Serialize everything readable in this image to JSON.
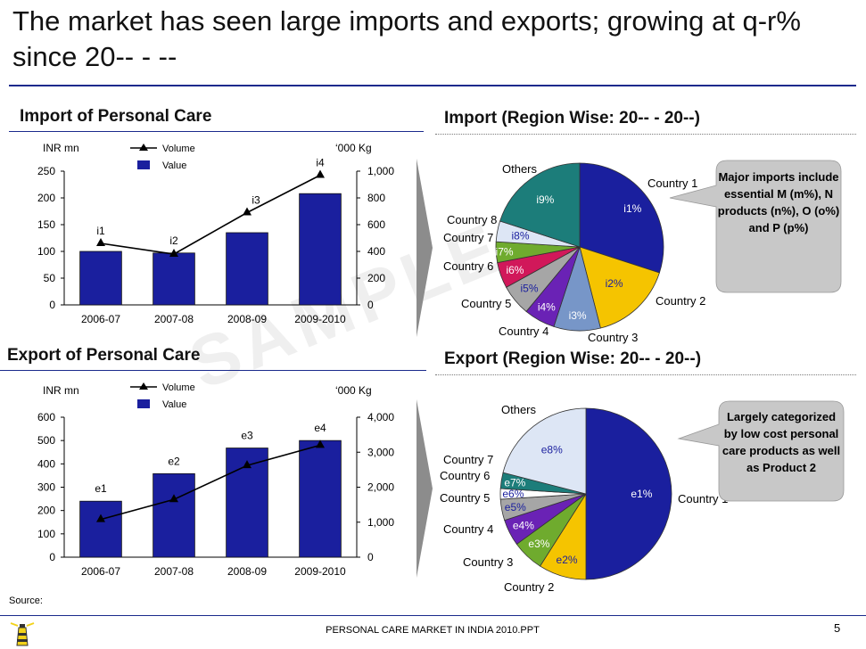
{
  "title": "The market has seen large imports and exports; growing at q-r% since 20-- - --",
  "source_label": "Source:",
  "footer": "PERSONAL CARE MARKET IN INDIA 2010.PPT",
  "page_number": "5",
  "watermark": "SAMPLE",
  "callouts": {
    "import": "Major imports include essential M (m%), N products (n%), O (o%) and P (p%)",
    "export": "Largely categorized by low cost personal care products as well as Product 2"
  },
  "colors": {
    "bar": "#1a1f9e",
    "line": "#000000",
    "rule": "#1a2a8c",
    "callout": "#c8c8c8"
  },
  "chart_data": [
    {
      "id": "import_bar",
      "type": "bar",
      "title": "Import of Personal Care",
      "ylabel_left": "INR mn",
      "ylabel_right": "‘000 Kg",
      "categories": [
        "2006-07",
        "2007-08",
        "2008-09",
        "2009-2010"
      ],
      "ylim_left": [
        0,
        250
      ],
      "yticks_left": [
        "0",
        "50",
        "100",
        "150",
        "200",
        "250"
      ],
      "ylim_right": [
        0,
        1000
      ],
      "yticks_right": [
        "0",
        "200",
        "400",
        "600",
        "800",
        "1,000"
      ],
      "series": [
        {
          "name": "Value",
          "type": "bar",
          "axis": "left",
          "values": [
            100,
            97,
            135,
            208
          ]
        },
        {
          "name": "Volume",
          "type": "line",
          "axis": "right",
          "values": [
            460,
            380,
            690,
            970
          ]
        }
      ],
      "data_labels": [
        "i1",
        "i2",
        "i3",
        "i4"
      ],
      "legend": [
        "Volume",
        "Value"
      ]
    },
    {
      "id": "export_bar",
      "type": "bar",
      "title": "Export of Personal Care",
      "ylabel_left": "INR mn",
      "ylabel_right": "‘000 Kg",
      "categories": [
        "2006-07",
        "2007-08",
        "2008-09",
        "2009-2010"
      ],
      "ylim_left": [
        0,
        600
      ],
      "yticks_left": [
        "0",
        "100",
        "200",
        "300",
        "400",
        "500",
        "600"
      ],
      "ylim_right": [
        0,
        4000
      ],
      "yticks_right": [
        "0",
        "1,000",
        "2,000",
        "3,000",
        "4,000"
      ],
      "series": [
        {
          "name": "Value",
          "type": "bar",
          "axis": "left",
          "values": [
            240,
            358,
            468,
            500
          ]
        },
        {
          "name": "Volume",
          "type": "line",
          "axis": "right",
          "values": [
            1080,
            1650,
            2620,
            3200
          ]
        }
      ],
      "data_labels": [
        "e1",
        "e2",
        "e3",
        "e4"
      ],
      "legend": [
        "Volume",
        "Value"
      ]
    },
    {
      "id": "import_pie",
      "type": "pie",
      "title": "Import (Region Wise: 20-- - 20--)",
      "slices": [
        {
          "name": "Country 1",
          "label": "i1%",
          "value": 0.3,
          "color": "#1a1f9e",
          "label_color": "#ffffff"
        },
        {
          "name": "Country 2",
          "label": "i2%",
          "value": 0.16,
          "color": "#f5c400",
          "label_color": "#1a1f9e"
        },
        {
          "name": "Country 3",
          "label": "i3%",
          "value": 0.09,
          "color": "#7796c8",
          "label_color": "#ffffff"
        },
        {
          "name": "Country 4",
          "label": "i4%",
          "value": 0.06,
          "color": "#6a22b5",
          "label_color": "#ffffff"
        },
        {
          "name": "Country 5",
          "label": "i5%",
          "value": 0.06,
          "color": "#a6a6a6",
          "label_color": "#1a1f9e"
        },
        {
          "name": "Country 6",
          "label": "i6%",
          "value": 0.05,
          "color": "#d1185a",
          "label_color": "#ffffff"
        },
        {
          "name": "Country 7",
          "label": "i7%",
          "value": 0.04,
          "color": "#6fab2e",
          "label_color": "#ffffff"
        },
        {
          "name": "Country 8",
          "label": "i8%",
          "value": 0.04,
          "color": "#dde6f5",
          "label_color": "#1a1f9e"
        },
        {
          "name": "Others",
          "label": "i9%",
          "value": 0.2,
          "color": "#1c7d7a",
          "label_color": "#ffffff"
        }
      ]
    },
    {
      "id": "export_pie",
      "type": "pie",
      "title": "Export (Region Wise: 20-- - 20--)",
      "slices": [
        {
          "name": "Country 1",
          "label": "e1%",
          "value": 0.5,
          "color": "#1a1f9e",
          "label_color": "#ffffff"
        },
        {
          "name": "Country 2",
          "label": "e2%",
          "value": 0.09,
          "color": "#f5c400",
          "label_color": "#1a1f9e"
        },
        {
          "name": "Country 3",
          "label": "e3%",
          "value": 0.06,
          "color": "#6fab2e",
          "label_color": "#ffffff"
        },
        {
          "name": "Country 4",
          "label": "e4%",
          "value": 0.05,
          "color": "#6a22b5",
          "label_color": "#ffffff"
        },
        {
          "name": "Country 5",
          "label": "e5%",
          "value": 0.04,
          "color": "#a6a6a6",
          "label_color": "#1a1f9e"
        },
        {
          "name": "Country 6",
          "label": "e6%",
          "value": 0.02,
          "color": "#ffffff",
          "label_color": "#1a1f9e"
        },
        {
          "name": "Country 7",
          "label": "e7%",
          "value": 0.03,
          "color": "#1c7d7a",
          "label_color": "#ffffff"
        },
        {
          "name": "Others",
          "label": "e8%",
          "value": 0.21,
          "color": "#dde6f5",
          "label_color": "#1a1f9e"
        }
      ]
    }
  ]
}
